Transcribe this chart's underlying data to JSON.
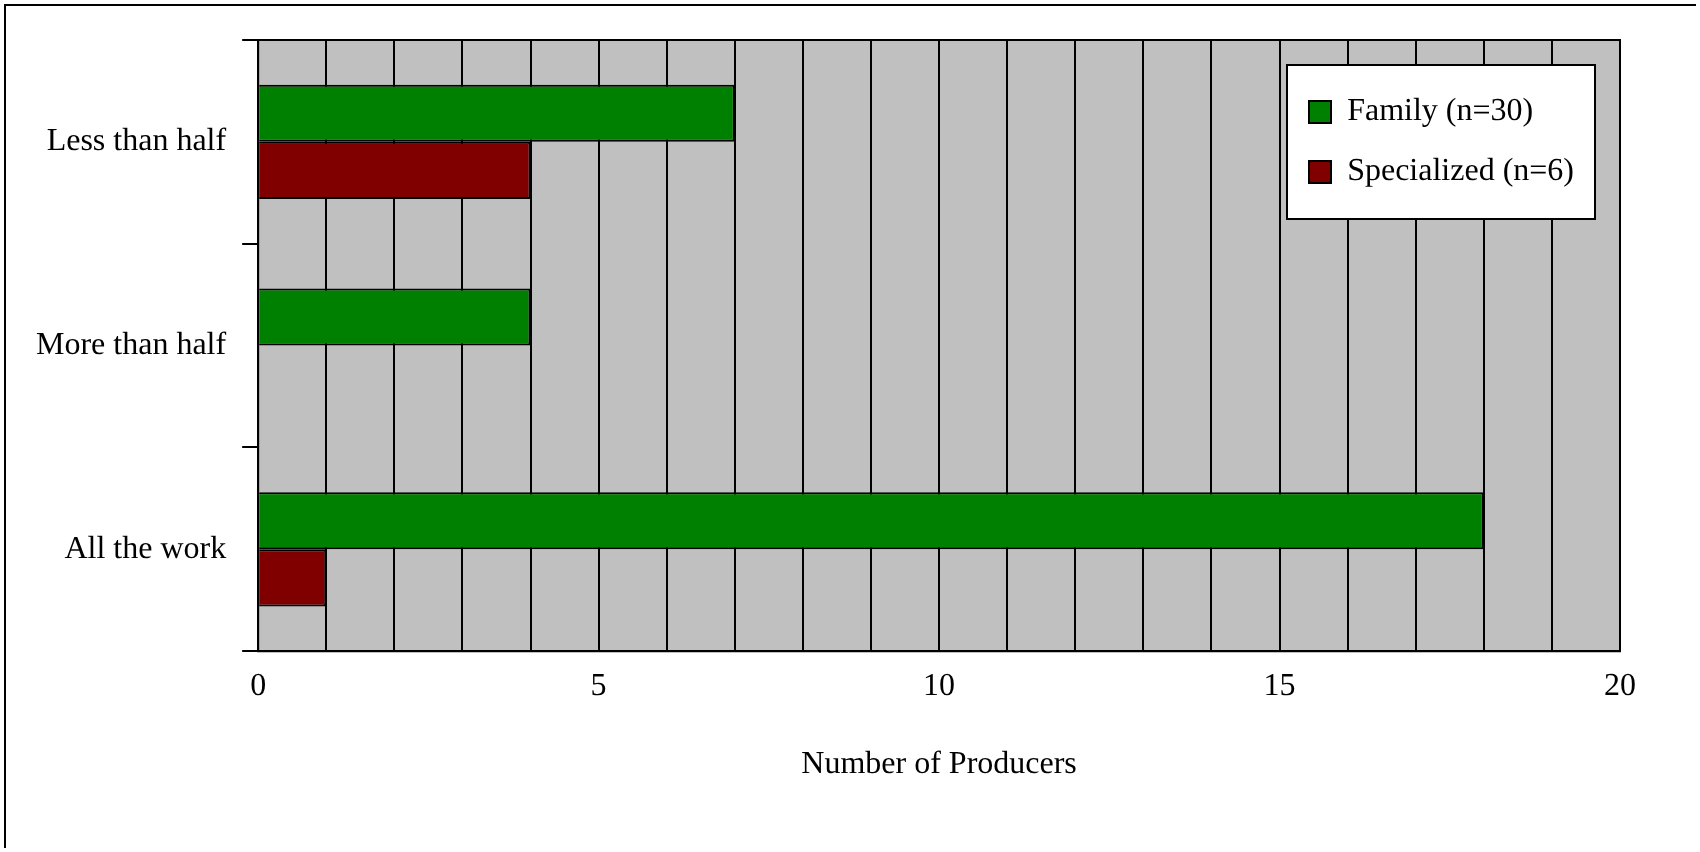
{
  "chart_data": {
    "type": "bar",
    "orientation": "horizontal",
    "xlabel": "Number of Producers",
    "categories": [
      "Less than half",
      "More than half",
      "All the work"
    ],
    "series": [
      {
        "name": "Family (n=30)",
        "color": "#008000",
        "values": [
          7,
          4,
          18
        ]
      },
      {
        "name": "Specialized (n=6)",
        "color": "#800000",
        "values": [
          4,
          0,
          1
        ]
      }
    ],
    "xlim": [
      0,
      20
    ],
    "xticks": [
      0,
      {
        "value": 1,
        "label": null
      },
      {
        "value": 2,
        "label": null
      },
      {
        "value": 3,
        "label": null
      },
      {
        "value": 4,
        "label": null
      },
      5,
      {
        "value": 6,
        "label": null
      },
      {
        "value": 7,
        "label": null
      },
      {
        "value": 8,
        "label": null
      },
      {
        "value": 9,
        "label": null
      },
      10,
      {
        "value": 11,
        "label": null
      },
      {
        "value": 12,
        "label": null
      },
      {
        "value": 13,
        "label": null
      },
      {
        "value": 14,
        "label": null
      },
      15,
      {
        "value": 16,
        "label": null
      },
      {
        "value": 17,
        "label": null
      },
      {
        "value": 18,
        "label": null
      },
      {
        "value": 19,
        "label": null
      },
      20
    ],
    "grid": "x",
    "legend": "top right"
  }
}
